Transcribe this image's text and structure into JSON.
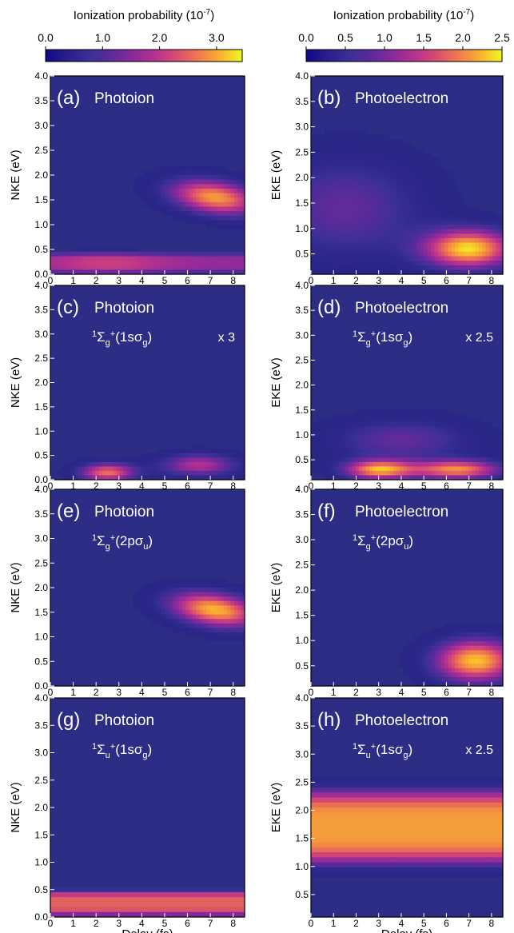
{
  "colorbars": [
    {
      "label": "Ionization probability (10",
      "label_exp": "-7",
      "label_close": ")",
      "ticks": [
        "0.0",
        "1.0",
        "2.0",
        "3.0"
      ],
      "min": 0,
      "max": 3.45,
      "tick_values": [
        0,
        1,
        2,
        3
      ]
    },
    {
      "label": "Ionization probability (10",
      "label_exp": "-7",
      "label_close": ")",
      "ticks": [
        "0.0",
        "0.5",
        "1.0",
        "1.5",
        "2.0",
        "2.5"
      ],
      "min": 0,
      "max": 2.5,
      "tick_values": [
        0,
        0.5,
        1,
        1.5,
        2,
        2.5
      ]
    }
  ],
  "colormap": [
    "#0d0887",
    "#2a1f8c",
    "#3a2f96",
    "#5c2b9a",
    "#8a2a9b",
    "#b5318f",
    "#d94c72",
    "#ef7a4d",
    "#f9b12f",
    "#f0f921"
  ],
  "background_color": "#2c2d85",
  "x_ticks": [
    "0",
    "1",
    "2",
    "3",
    "4",
    "5",
    "6",
    "7",
    "8"
  ],
  "x_label": "Delay (fs)",
  "nke_ticks": [
    "0.0",
    "0.5",
    "1.0",
    "1.5",
    "2.0",
    "2.5",
    "3.0",
    "3.5",
    "4.0"
  ],
  "eke_ticks": [
    "0.5",
    "1.0",
    "1.5",
    "2.0",
    "2.5",
    "3.0",
    "3.5",
    "4.0"
  ],
  "chart_data": [
    {
      "type": "heatmap",
      "panel": "(a)",
      "title": "Photoion",
      "ylabel": "NKE (eV)",
      "state": "",
      "scale": "",
      "xlim": [
        0,
        8.5
      ],
      "ylim": [
        0,
        4.0
      ],
      "features": [
        {
          "x0": 0,
          "x1": 8.5,
          "y0": 0.0,
          "y1": 0.45,
          "peak": 0.62,
          "ramp": [
            0,
            2.5
          ]
        },
        {
          "cx": 7.2,
          "cy": 1.55,
          "rx": 2.6,
          "ry": 0.45,
          "peak": 0.85,
          "tilt": -0.06
        }
      ]
    },
    {
      "type": "heatmap",
      "panel": "(b)",
      "title": "Photoelectron",
      "ylabel": "EKE (eV)",
      "state": "",
      "scale": "",
      "xlim": [
        0,
        8.5
      ],
      "ylim": [
        0.1,
        4.0
      ],
      "features": [
        {
          "cx": 1.5,
          "cy": 1.4,
          "rx": 4.5,
          "ry": 1.3,
          "peak": 0.35
        },
        {
          "cx": 7.0,
          "cy": 0.6,
          "rx": 2.6,
          "ry": 0.5,
          "peak": 0.95
        }
      ]
    },
    {
      "type": "heatmap",
      "panel": "(c)",
      "title": "Photoion",
      "ylabel": "NKE (eV)",
      "state_sym": "Σ",
      "state_sub": "g",
      "state_orb": "1sσ",
      "orb_sub": "g",
      "scale": "x 3",
      "xlim": [
        0,
        8.5
      ],
      "ylim": [
        0,
        4.0
      ],
      "features": [
        {
          "cx": 2.5,
          "cy": 0.15,
          "rx": 1.6,
          "ry": 0.25,
          "peak": 0.75
        },
        {
          "cx": 6.5,
          "cy": 0.3,
          "rx": 2.2,
          "ry": 0.3,
          "peak": 0.55
        }
      ]
    },
    {
      "type": "heatmap",
      "panel": "(d)",
      "title": "Photoelectron",
      "ylabel": "EKE (eV)",
      "state_sym": "Σ",
      "state_sub": "g",
      "state_orb": "1sσ",
      "orb_sub": "g",
      "scale": "x 2.5",
      "xlim": [
        0,
        8.5
      ],
      "ylim": [
        0.1,
        4.0
      ],
      "features": [
        {
          "cx": 3.0,
          "cy": 0.3,
          "rx": 2.0,
          "ry": 0.25,
          "peak": 0.85
        },
        {
          "cx": 6.5,
          "cy": 0.3,
          "rx": 2.5,
          "ry": 0.25,
          "peak": 0.8
        },
        {
          "cx": 4.0,
          "cy": 0.9,
          "rx": 4.0,
          "ry": 0.55,
          "peak": 0.35
        }
      ]
    },
    {
      "type": "heatmap",
      "panel": "(e)",
      "title": "Photoion",
      "ylabel": "NKE (eV)",
      "state_sym": "Σ",
      "state_sub": "g",
      "state_orb": "2pσ",
      "orb_sub": "u",
      "scale": "",
      "xlim": [
        0,
        8.5
      ],
      "ylim": [
        0,
        4.0
      ],
      "features": [
        {
          "cx": 7.2,
          "cy": 1.55,
          "rx": 2.6,
          "ry": 0.45,
          "peak": 0.9,
          "tilt": -0.06
        }
      ]
    },
    {
      "type": "heatmap",
      "panel": "(f)",
      "title": "Photoelectron",
      "ylabel": "EKE (eV)",
      "state_sym": "Σ",
      "state_sub": "g",
      "state_orb": "2pσ",
      "orb_sub": "u",
      "scale": "",
      "xlim": [
        0,
        8.5
      ],
      "ylim": [
        0.1,
        4.0
      ],
      "features": [
        {
          "cx": 7.3,
          "cy": 0.6,
          "rx": 2.4,
          "ry": 0.55,
          "peak": 0.92
        }
      ]
    },
    {
      "type": "heatmap",
      "panel": "(g)",
      "title": "Photoion",
      "ylabel": "NKE (eV)",
      "state_sym": "Σ",
      "state_sub": "u",
      "state_orb": "1sσ",
      "orb_sub": "g",
      "scale": "",
      "xlim": [
        0,
        8.5
      ],
      "ylim": [
        0,
        4.0
      ],
      "features": [
        {
          "x0": 0,
          "x1": 8.5,
          "y0": 0.0,
          "y1": 0.5,
          "peak": 0.72,
          "ramp": null
        }
      ]
    },
    {
      "type": "heatmap",
      "panel": "(h)",
      "title": "Photoelectron",
      "ylabel": "EKE (eV)",
      "state_sym": "Σ",
      "state_sub": "u",
      "state_orb": "1sσ",
      "orb_sub": "g",
      "scale": "x 2.5",
      "xlim": [
        0,
        8.5
      ],
      "ylim": [
        0.1,
        4.0
      ],
      "features": [
        {
          "x0": 0,
          "x1": 8.5,
          "y0": 1.0,
          "y1": 2.4,
          "peak": 0.85,
          "ramp": null
        }
      ]
    }
  ]
}
